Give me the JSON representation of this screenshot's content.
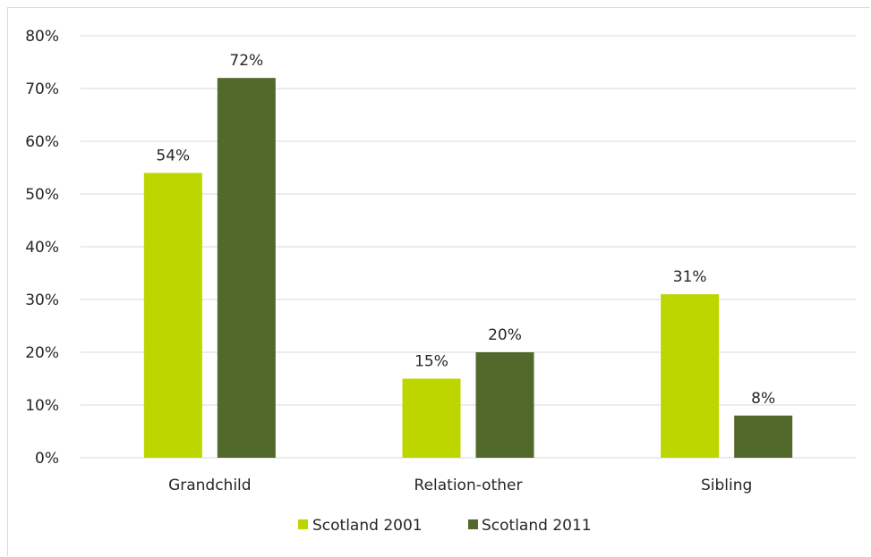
{
  "chart_data": {
    "type": "bar",
    "categories": [
      "Grandchild",
      "Relation-other",
      "Sibling"
    ],
    "series": [
      {
        "name": "Scotland 2001",
        "values": [
          54,
          15,
          31
        ],
        "labels": [
          "54%",
          "15%",
          "31%"
        ],
        "color": "#bed600"
      },
      {
        "name": "Scotland 2011",
        "values": [
          72,
          20,
          8
        ],
        "labels": [
          "72%",
          "20%",
          "8%"
        ],
        "color": "#53682b"
      }
    ],
    "ylim": [
      0,
      80
    ],
    "yticks": [
      "0%",
      "10%",
      "20%",
      "30%",
      "40%",
      "50%",
      "60%",
      "70%",
      "80%"
    ],
    "grid": true,
    "legend_position": "bottom",
    "gridline_color": "#d9d9d9",
    "text_color": "#262626"
  }
}
